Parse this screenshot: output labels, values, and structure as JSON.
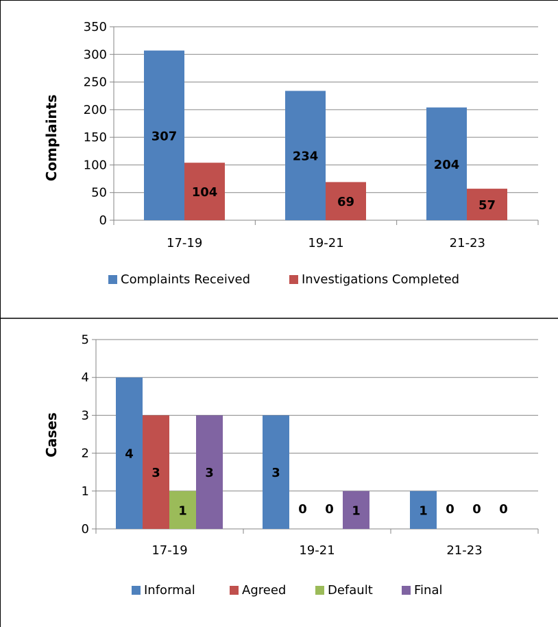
{
  "colors": {
    "blue": "#4F81BD",
    "red": "#C0504D",
    "green": "#9BBB59",
    "purple": "#8064A2",
    "grid": "#868686",
    "frame": "#000000"
  },
  "chart_data": [
    {
      "type": "bar",
      "title": "",
      "xlabel": "",
      "ylabel": "Complaints",
      "ylim": [
        0,
        350
      ],
      "yticks": [
        0,
        50,
        100,
        150,
        200,
        250,
        300,
        350
      ],
      "grid": true,
      "legend": "bottom",
      "categories": [
        "17-19",
        "19-21",
        "21-23"
      ],
      "series": [
        {
          "name": "Complaints Received",
          "color": "#4F81BD",
          "values": [
            307,
            234,
            204
          ]
        },
        {
          "name": "Investigations Completed",
          "color": "#C0504D",
          "values": [
            104,
            69,
            57
          ]
        }
      ]
    },
    {
      "type": "bar",
      "title": "",
      "xlabel": "",
      "ylabel": "Cases",
      "ylim": [
        0,
        5
      ],
      "yticks": [
        0,
        1,
        2,
        3,
        4,
        5
      ],
      "grid": true,
      "legend": "bottom",
      "categories": [
        "17-19",
        "19-21",
        "21-23"
      ],
      "series": [
        {
          "name": "Informal",
          "color": "#4F81BD",
          "values": [
            4,
            3,
            1
          ]
        },
        {
          "name": "Agreed",
          "color": "#C0504D",
          "values": [
            3,
            0,
            0
          ]
        },
        {
          "name": "Default",
          "color": "#9BBB59",
          "values": [
            1,
            0,
            0
          ]
        },
        {
          "name": "Final",
          "color": "#8064A2",
          "values": [
            3,
            1,
            0
          ]
        }
      ]
    }
  ]
}
